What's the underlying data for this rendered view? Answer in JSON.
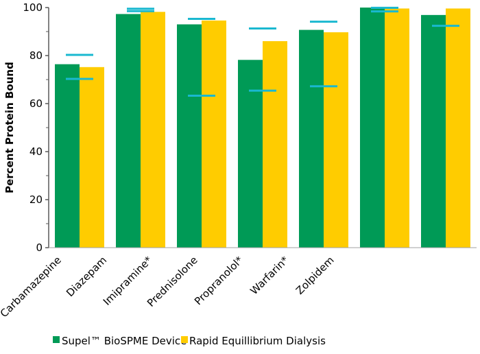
{
  "chart_data": {
    "type": "bar",
    "title": "",
    "xlabel": "",
    "ylabel": "Percent Protein Bound",
    "ylim": [
      0,
      100
    ],
    "yticks": [
      0,
      20,
      40,
      60,
      80,
      100
    ],
    "grid": false,
    "legend_placement": "bottom",
    "categories": [
      "Carbamazepine",
      "Diazepam",
      "Imipramine*",
      "Prednisolone",
      "Propranolol*",
      "Warfarin*",
      "Zolpidem"
    ],
    "series": [
      {
        "name": "Supel™ BioSPME Device",
        "color": "#009a56",
        "values": [
          76.4,
          97.3,
          93.0,
          78.2,
          90.7,
          100.0,
          96.9
        ]
      },
      {
        "name": "Rapid Equillibrium Dialysis",
        "color": "#ffcc00",
        "values": [
          75.2,
          98.2,
          94.6,
          86.0,
          89.7,
          99.6,
          99.6
        ]
      }
    ],
    "reference_lines": {
      "color": "#1ab8d0",
      "values": [
        [
          80.3,
          70.3
        ],
        [
          99.5,
          98.5
        ],
        [
          95.3,
          63.3
        ],
        [
          91.3,
          65.4
        ],
        [
          94.1,
          67.2
        ],
        [
          99.9,
          98.4
        ],
        [
          92.4
        ]
      ]
    }
  }
}
